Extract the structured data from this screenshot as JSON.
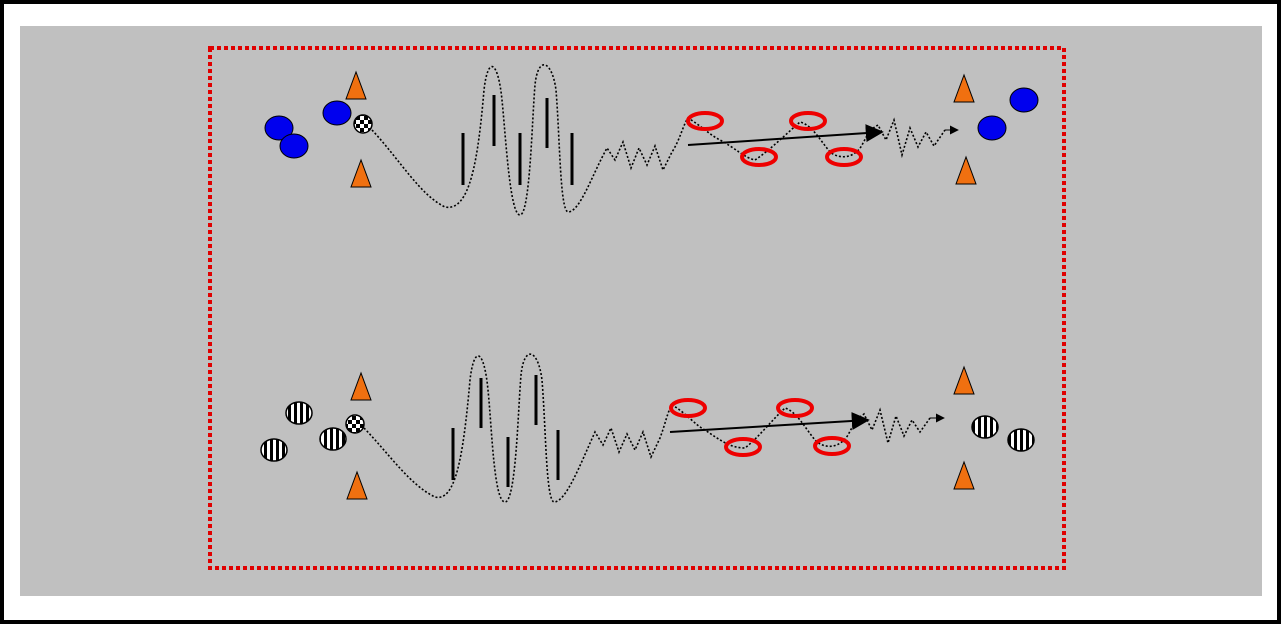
{
  "colors": {
    "frame": "#000000",
    "field": "#c0c0c0",
    "boundary": "#e00000",
    "cone": "#f07010",
    "team_blue": "#0000ee",
    "ring": "#ee0000",
    "pole": "#000000",
    "dribble_path": "#000000",
    "pass_arrow": "#000000"
  },
  "drills": [
    {
      "team": "blue-team",
      "player_pattern": "solid",
      "element_counts": {
        "start_players": 3,
        "cones": 4,
        "poles": 5,
        "rings": 4,
        "end_players": 2,
        "balls": 1
      }
    },
    {
      "team": "striped-team",
      "player_pattern": "striped",
      "element_counts": {
        "start_players": 3,
        "cones": 4,
        "poles": 5,
        "rings": 4,
        "end_players": 2,
        "balls": 1
      }
    }
  ],
  "icons": [
    "cone-icon",
    "player-icon",
    "ball-icon",
    "pole-icon",
    "ring-icon",
    "arrow-icon"
  ]
}
